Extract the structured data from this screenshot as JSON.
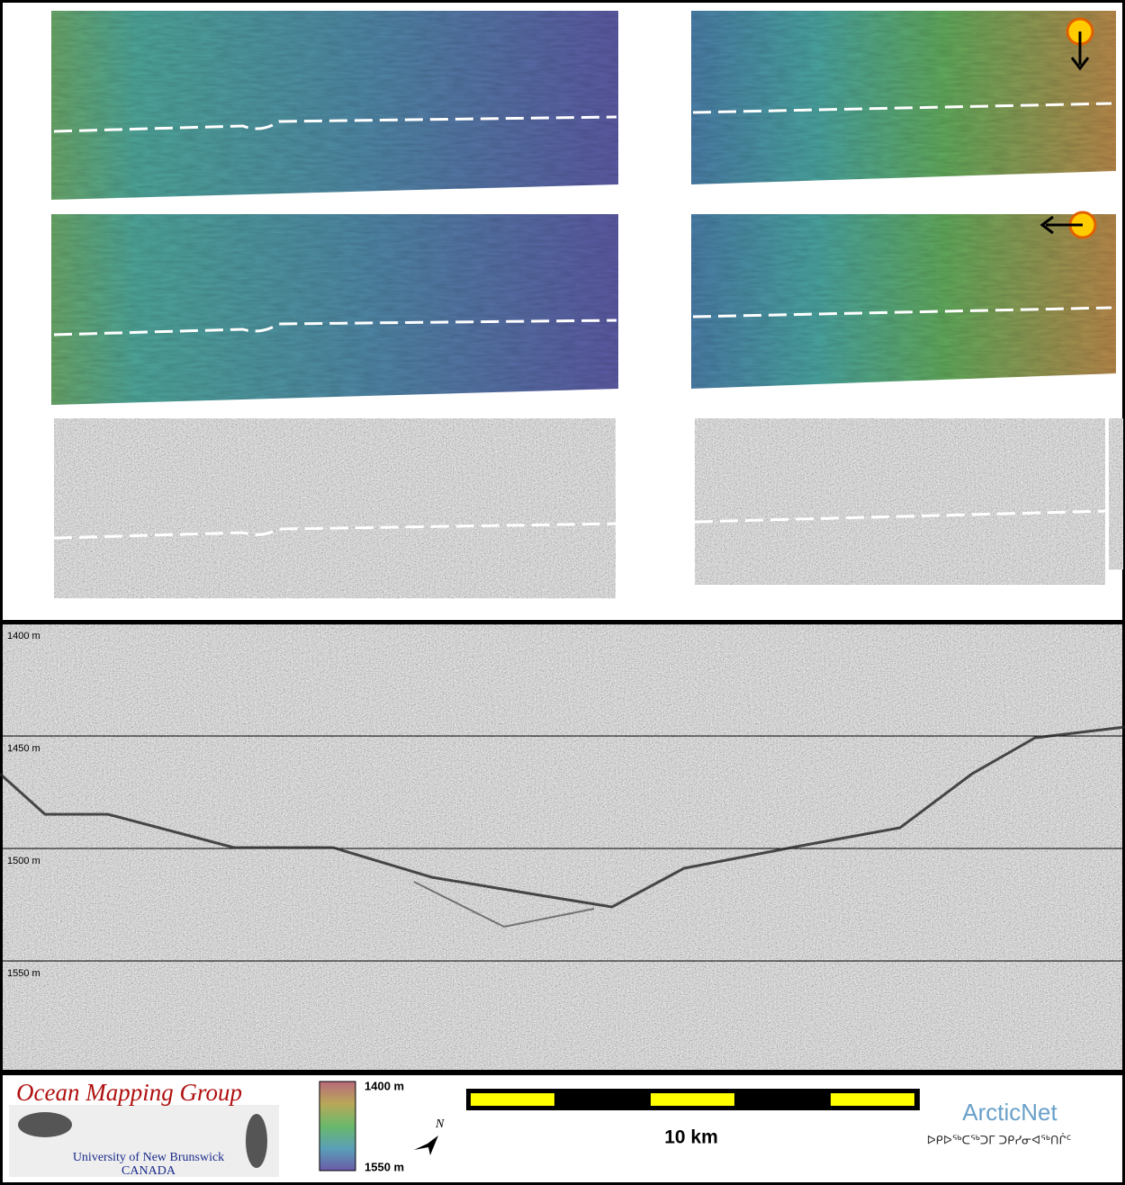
{
  "profile": {
    "depth_labels": [
      "1400 m",
      "1450 m",
      "1500 m",
      "1550 m"
    ]
  },
  "footer": {
    "group_name": "Ocean Mapping Group",
    "university": "University of New Brunswick",
    "country": "CANADA",
    "color_scale": {
      "top_label": "1400 m",
      "bottom_label": "1550 m"
    },
    "north_label": "N",
    "scale_bar_label": "10 km",
    "partner": "ArcticNet",
    "partner_syllabics": "ᐅᑭᐅᖅᑕᖅᑐᒥ ᑐᑭᓯᓂᐊᖅᑎᒌᑦ"
  }
}
